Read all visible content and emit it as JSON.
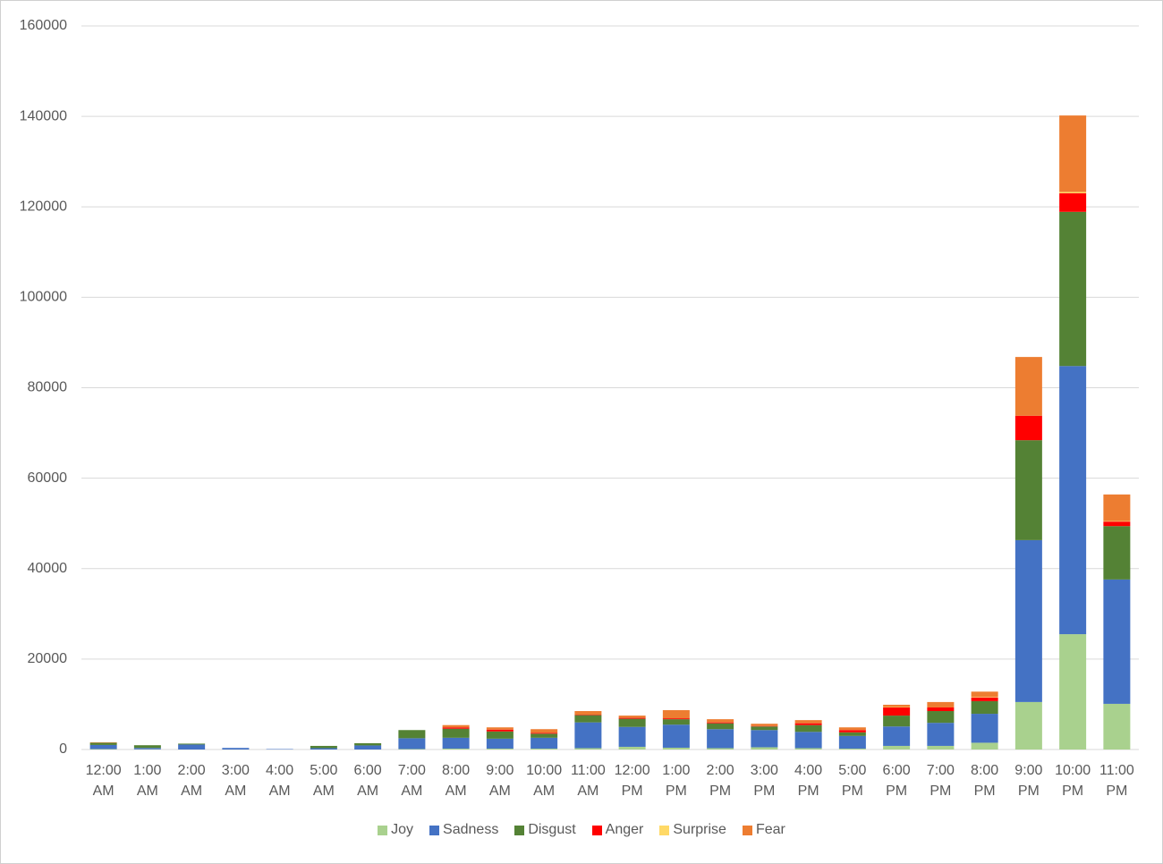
{
  "chart_data": {
    "type": "stacked_bar",
    "categories": [
      "12:00 AM",
      "1:00 AM",
      "2:00 AM",
      "3:00 AM",
      "4:00 AM",
      "5:00 AM",
      "6:00 AM",
      "7:00 AM",
      "8:00 AM",
      "9:00 AM",
      "10:00 AM",
      "11:00 AM",
      "12:00 PM",
      "1:00 PM",
      "2:00 PM",
      "3:00 PM",
      "4:00 PM",
      "5:00 PM",
      "6:00 PM",
      "7:00 PM",
      "8:00 PM",
      "9:00 PM",
      "10:00 PM",
      "11:00 PM"
    ],
    "series": [
      {
        "name": "Joy",
        "color": "#a9d18e",
        "values": [
          100,
          50,
          0,
          0,
          0,
          0,
          0,
          100,
          200,
          200,
          200,
          300,
          600,
          400,
          300,
          500,
          300,
          200,
          800,
          800,
          1500,
          10500,
          25500,
          10100
        ]
      },
      {
        "name": "Sadness",
        "color": "#4472c4",
        "values": [
          900,
          300,
          1100,
          350,
          100,
          300,
          900,
          2400,
          2400,
          2200,
          2400,
          5700,
          4400,
          5100,
          4200,
          3800,
          3600,
          2800,
          4300,
          5100,
          6400,
          35800,
          59300,
          27500
        ]
      },
      {
        "name": "Disgust",
        "color": "#548235",
        "values": [
          500,
          600,
          200,
          0,
          0,
          500,
          500,
          1800,
          2000,
          1600,
          900,
          1600,
          1800,
          1200,
          1300,
          800,
          1500,
          800,
          2400,
          2600,
          2800,
          22100,
          34100,
          11800
        ]
      },
      {
        "name": "Anger",
        "color": "#ff0000",
        "values": [
          0,
          0,
          0,
          0,
          0,
          0,
          0,
          0,
          300,
          400,
          200,
          100,
          200,
          200,
          200,
          100,
          400,
          500,
          1800,
          800,
          800,
          5400,
          4100,
          1000
        ]
      },
      {
        "name": "Surprise",
        "color": "#ffd966",
        "values": [
          0,
          0,
          0,
          0,
          0,
          0,
          0,
          0,
          0,
          0,
          0,
          0,
          0,
          0,
          0,
          0,
          0,
          0,
          100,
          0,
          100,
          0,
          300,
          100
        ]
      },
      {
        "name": "Fear",
        "color": "#ed7d31",
        "values": [
          100,
          0,
          0,
          0,
          0,
          0,
          0,
          0,
          500,
          500,
          800,
          800,
          500,
          1800,
          700,
          500,
          700,
          600,
          500,
          1200,
          1200,
          13000,
          16900,
          5900
        ]
      }
    ],
    "ylim": [
      0,
      160000
    ],
    "yticks": [
      0,
      20000,
      40000,
      60000,
      80000,
      100000,
      120000,
      140000,
      160000
    ],
    "grid": true,
    "legend": "bottom"
  }
}
